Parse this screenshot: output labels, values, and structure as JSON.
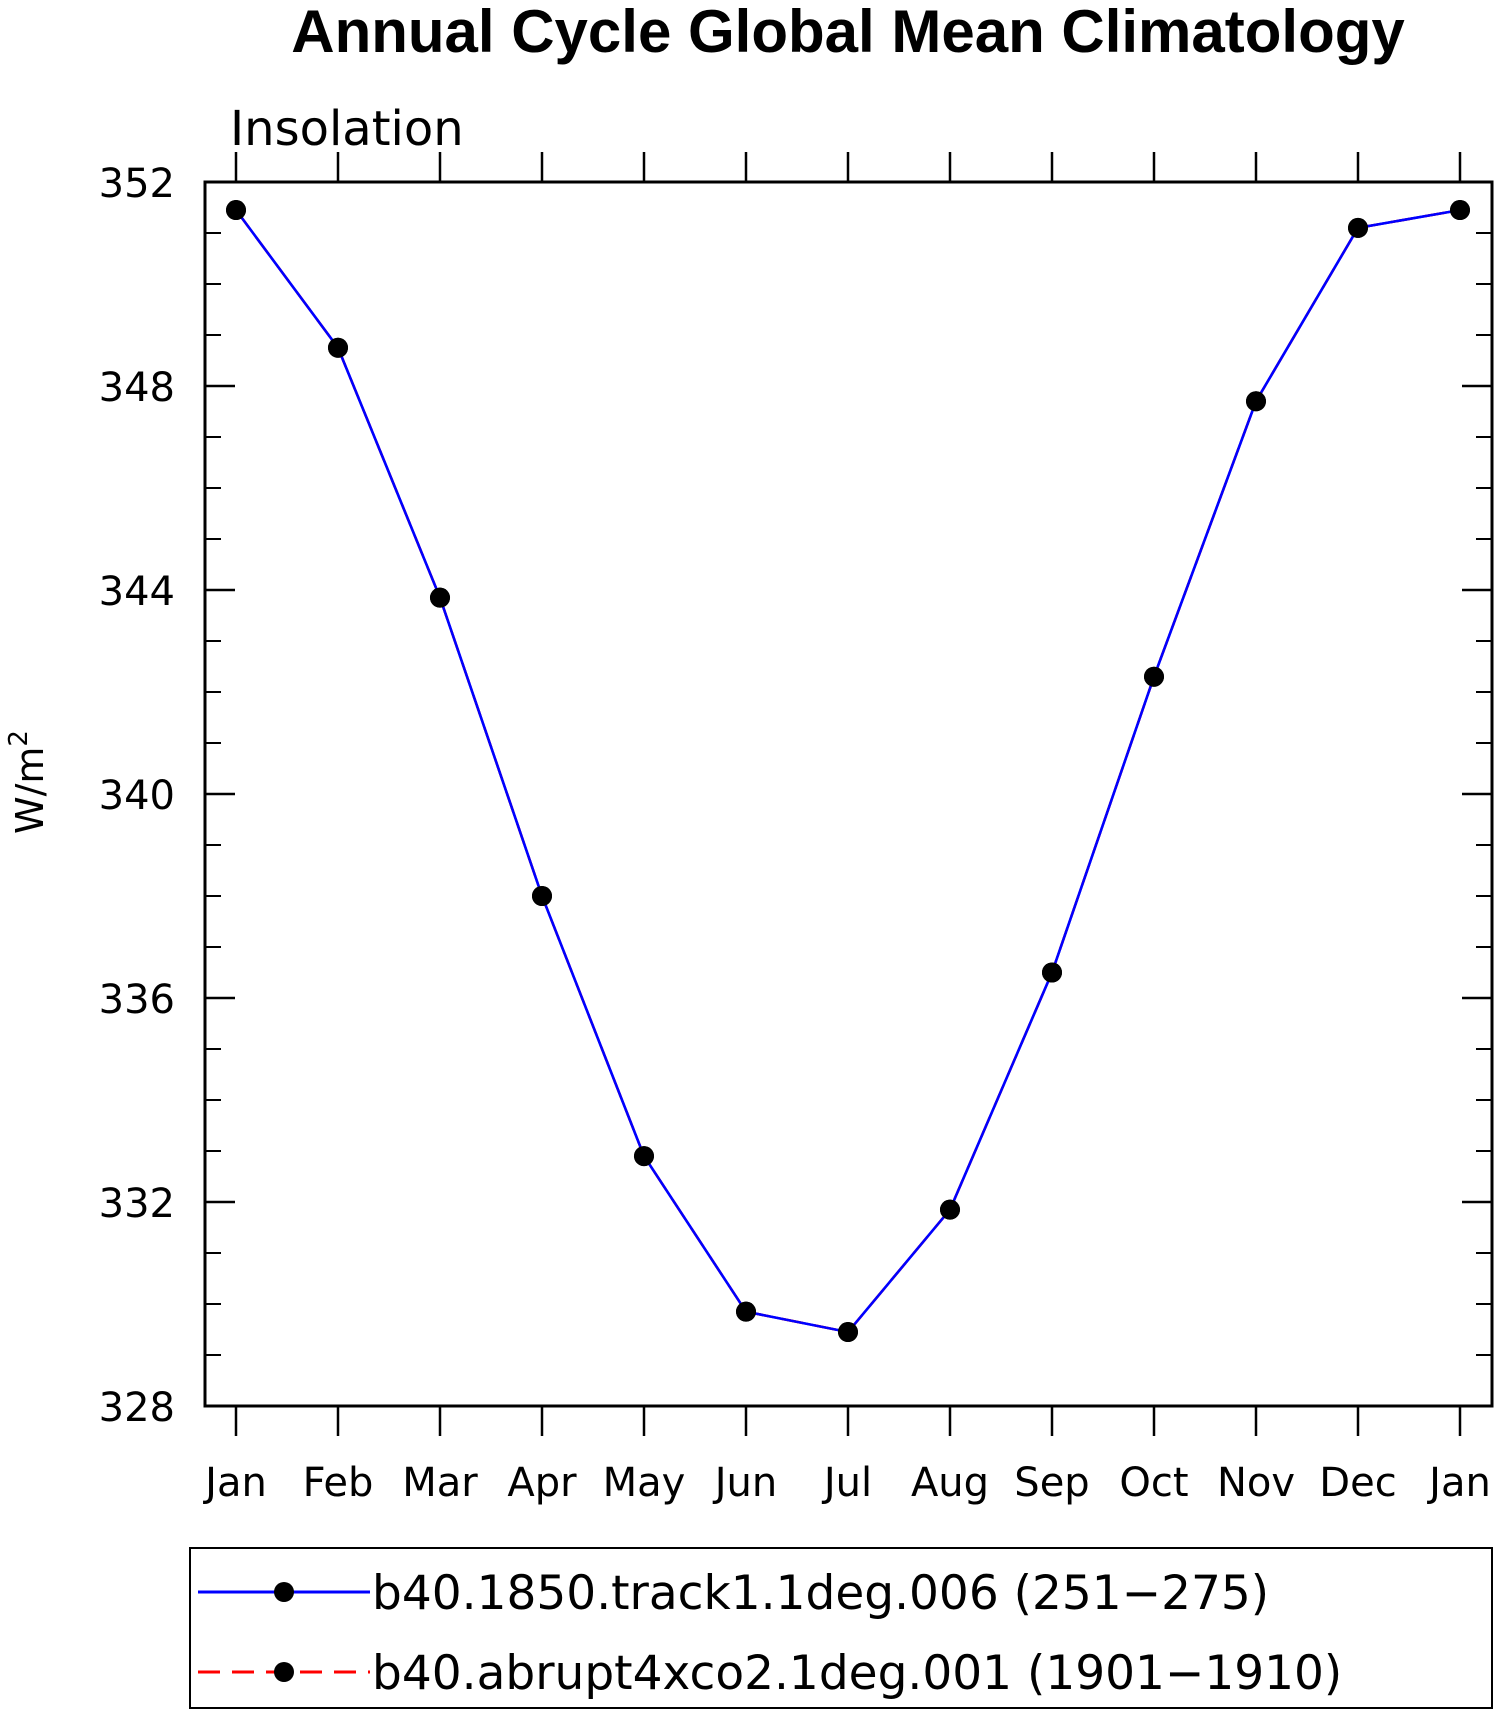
{
  "chart_data": {
    "type": "line",
    "title": "Annual Cycle Global Mean Climatology",
    "subtitle": "Insolation",
    "ylabel_base": "W/m",
    "ylabel_sup": "2",
    "xlabel": "",
    "categories": [
      "Jan",
      "Feb",
      "Mar",
      "Apr",
      "May",
      "Jun",
      "Jul",
      "Aug",
      "Sep",
      "Oct",
      "Nov",
      "Dec",
      "Jan"
    ],
    "ylim": [
      328,
      352
    ],
    "yticks": [
      328,
      332,
      336,
      340,
      344,
      348,
      352
    ],
    "grid": false,
    "legend_position": "bottom",
    "series": [
      {
        "name": "b40.1850.track1.1deg.006 (251−275)",
        "color": "#0000ff",
        "dash": "solid",
        "marker": "filled-circle",
        "values": [
          351.45,
          348.75,
          343.85,
          338.0,
          332.9,
          329.85,
          329.45,
          331.85,
          336.5,
          342.3,
          347.7,
          351.1,
          351.45
        ]
      },
      {
        "name": "b40.abrupt4xco2.1deg.001 (1901−1910)",
        "color": "#ff0000",
        "dash": "dashed",
        "marker": "filled-circle",
        "values": [
          351.45,
          348.75,
          343.85,
          338.0,
          332.9,
          329.85,
          329.45,
          331.85,
          336.5,
          342.3,
          347.7,
          351.1,
          351.45
        ]
      }
    ]
  }
}
